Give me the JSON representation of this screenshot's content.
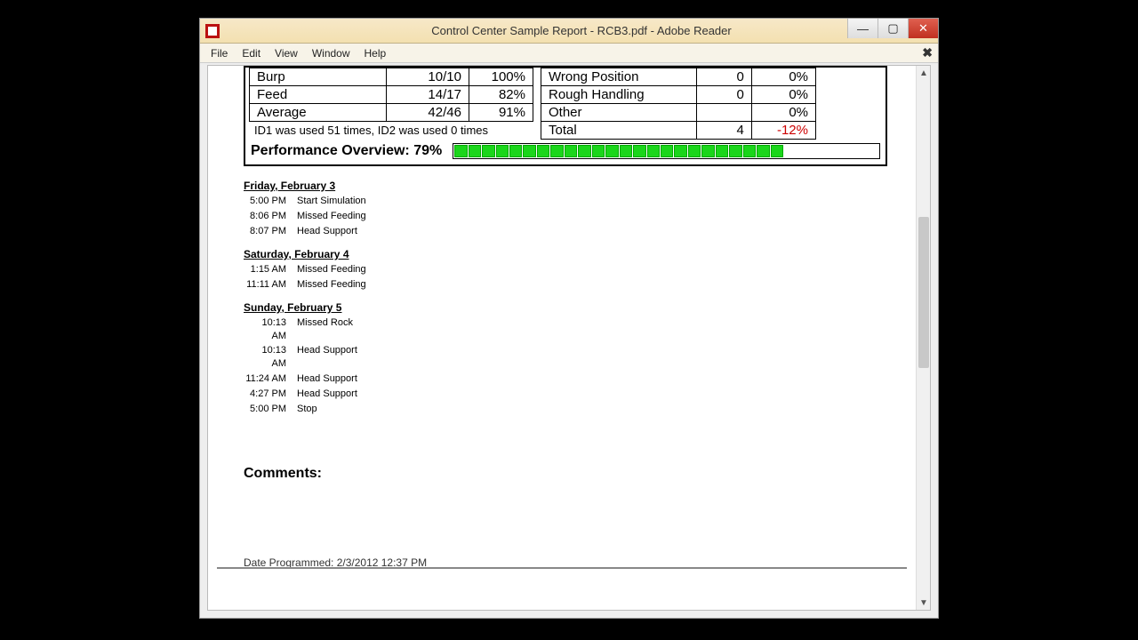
{
  "window": {
    "title": "Control Center Sample Report - RCB3.pdf - Adobe Reader",
    "menus": [
      "File",
      "Edit",
      "View",
      "Window",
      "Help"
    ]
  },
  "leftTable": {
    "rows": [
      {
        "label": "Burp",
        "ratio": "10/10",
        "pct": "100%"
      },
      {
        "label": "Feed",
        "ratio": "14/17",
        "pct": "82%"
      },
      {
        "label": "Average",
        "ratio": "42/46",
        "pct": "91%"
      }
    ],
    "note": "ID1 was used 51 times, ID2 was used 0 times"
  },
  "rightTable": {
    "rows": [
      {
        "label": "Wrong Position",
        "count": "0",
        "pct": "0%",
        "neg": false
      },
      {
        "label": "Rough Handling",
        "count": "0",
        "pct": "0%",
        "neg": false
      },
      {
        "label": "Other",
        "count": "",
        "pct": "0%",
        "neg": false
      },
      {
        "label": "Total",
        "count": "4",
        "pct": "-12%",
        "neg": true
      }
    ]
  },
  "performance": {
    "label": "Performance Overview: 79%",
    "percent": 79,
    "segments": 30,
    "fillColor": "#1bd61b"
  },
  "log": [
    {
      "day": "Friday, February 3",
      "events": [
        {
          "t": "5:00 PM",
          "e": "Start Simulation"
        },
        {
          "t": "8:06 PM",
          "e": "Missed Feeding"
        },
        {
          "t": "8:07 PM",
          "e": "Head Support"
        }
      ]
    },
    {
      "day": "Saturday, February 4",
      "events": [
        {
          "t": "1:15 AM",
          "e": "Missed Feeding"
        },
        {
          "t": "11:11 AM",
          "e": "Missed Feeding"
        }
      ]
    },
    {
      "day": "Sunday, February 5",
      "events": [
        {
          "t": "10:13 AM",
          "e": "Missed Rock"
        },
        {
          "t": "10:13 AM",
          "e": "Head Support"
        },
        {
          "t": "11:24 AM",
          "e": "Head Support"
        },
        {
          "t": "4:27 PM",
          "e": "Head Support"
        },
        {
          "t": "5:00 PM",
          "e": "Stop"
        }
      ]
    }
  ],
  "commentsLabel": "Comments:",
  "dateProgrammed": "Date Programmed: 2/3/2012  12:37 PM",
  "scrollbar": {
    "thumbTop": 170,
    "thumbHeight": 170
  }
}
